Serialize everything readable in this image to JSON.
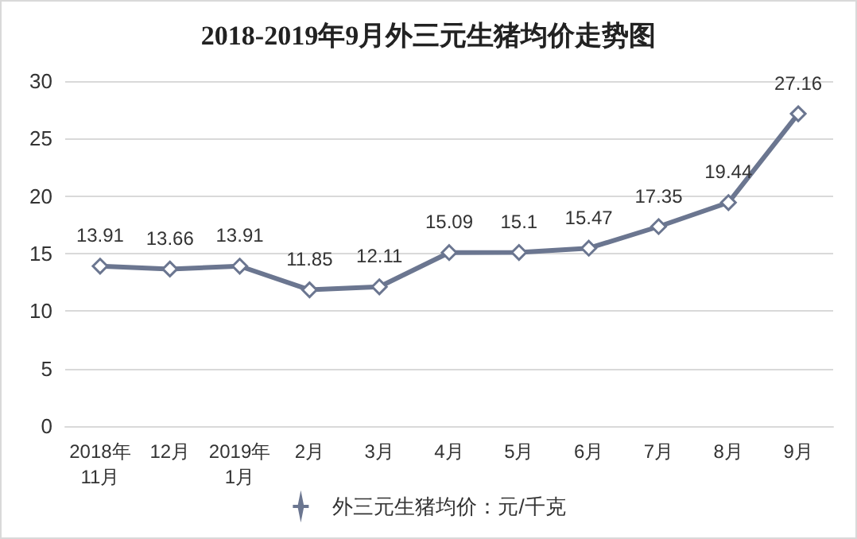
{
  "chart_data": {
    "type": "line",
    "title": "2018-2019年9月外三元生猪均价走势图",
    "categories": [
      "2018年\n11月",
      "12月",
      "2019年\n1月",
      "2月",
      "3月",
      "4月",
      "5月",
      "6月",
      "7月",
      "8月",
      "9月"
    ],
    "series": [
      {
        "name": "外三元生猪均价：元/千克",
        "color": "#6b7690",
        "values": [
          13.91,
          13.66,
          13.91,
          11.85,
          12.11,
          15.09,
          15.1,
          15.47,
          17.35,
          19.44,
          27.16
        ]
      }
    ],
    "ylim": [
      0,
      30
    ],
    "yticks": [
      0,
      5,
      10,
      15,
      20,
      25,
      30
    ],
    "grid": "y",
    "legend": "bottom",
    "marker": "diamond",
    "line_style": "solid",
    "data_labels": true
  }
}
